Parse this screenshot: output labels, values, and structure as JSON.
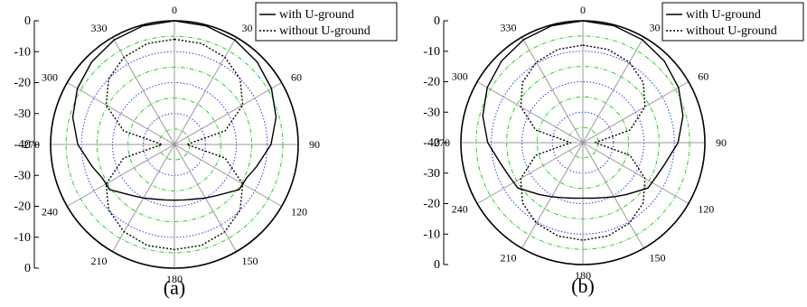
{
  "chart_data": [
    {
      "type": "polar-line",
      "panel_label": "(a)",
      "radial_axis": {
        "range": [
          -40,
          0
        ],
        "unit": "dB",
        "tick_labels": [
          "0",
          "-10",
          "-20",
          "-30",
          "-40",
          "-30",
          "-20",
          "-10",
          "0"
        ]
      },
      "angle_ticks": [
        "0",
        "30",
        "60",
        "90",
        "120",
        "150",
        "180",
        "210",
        "240",
        "270",
        "300",
        "330"
      ],
      "legend": {
        "position": "top-right",
        "entries": [
          "with U-ground",
          "without U-ground"
        ]
      },
      "grid": true,
      "series": [
        {
          "name": "with U-ground",
          "style": "solid",
          "color": "#000000",
          "theta_deg": [
            0,
            15,
            30,
            45,
            60,
            75,
            90,
            105,
            115,
            125,
            140,
            150,
            160,
            170,
            180,
            190,
            200,
            210,
            220,
            235,
            245,
            255,
            270,
            285,
            300,
            315,
            330,
            345
          ],
          "gain_db": [
            0,
            -0.3,
            -1,
            -2.2,
            -3.8,
            -6,
            -8.8,
            -12.5,
            -14.3,
            -14.5,
            -18.5,
            -20,
            -21.2,
            -21.8,
            -22,
            -21.8,
            -21.2,
            -20,
            -18.5,
            -14.5,
            -14.3,
            -12.5,
            -8.8,
            -6,
            -3.8,
            -2.2,
            -1,
            -0.3
          ]
        },
        {
          "name": "without U-ground",
          "style": "dotted",
          "color": "#000000",
          "theta_deg": [
            0,
            15,
            30,
            45,
            60,
            75,
            90,
            105,
            120,
            135,
            150,
            165,
            180,
            195,
            210,
            225,
            240,
            255,
            270,
            285,
            300,
            315,
            330,
            345
          ],
          "gain_db": [
            -6,
            -6.2,
            -7.4,
            -10,
            -14.5,
            -23,
            -36,
            -23,
            -14.5,
            -10,
            -7.4,
            -6.2,
            -6,
            -6.2,
            -7.4,
            -10,
            -14.5,
            -23,
            -36,
            -23,
            -14.5,
            -10,
            -7.4,
            -6.2
          ]
        }
      ]
    },
    {
      "type": "polar-line",
      "panel_label": "(b)",
      "radial_axis": {
        "range": [
          -40,
          0
        ],
        "unit": "dB",
        "tick_labels": [
          "0",
          "-10",
          "-20",
          "-30",
          "-40",
          "-30",
          "-20",
          "-10",
          "0"
        ]
      },
      "angle_ticks": [
        "0",
        "30",
        "60",
        "90",
        "120",
        "150",
        "180",
        "210",
        "240",
        "270",
        "300",
        "330"
      ],
      "legend": {
        "position": "top-right",
        "entries": [
          "with U-ground",
          "without U-ground"
        ]
      },
      "grid": true,
      "series": [
        {
          "name": "with U-ground",
          "style": "solid",
          "color": "#000000",
          "theta_deg": [
            0,
            15,
            30,
            45,
            60,
            75,
            90,
            105,
            115,
            125,
            140,
            150,
            160,
            170,
            180,
            190,
            200,
            210,
            220,
            235,
            245,
            255,
            270,
            285,
            300,
            315,
            330,
            345
          ],
          "gain_db": [
            0,
            -0.3,
            -1,
            -2.2,
            -3.8,
            -6,
            -8.8,
            -12.3,
            -13.5,
            -14,
            -17.8,
            -19.5,
            -20.8,
            -21.5,
            -21.8,
            -21.5,
            -20.8,
            -19.5,
            -17.8,
            -14,
            -13.5,
            -12.3,
            -8.8,
            -6,
            -3.8,
            -2.2,
            -1,
            -0.3
          ]
        },
        {
          "name": "without U-ground",
          "style": "dotted",
          "color": "#000000",
          "theta_deg": [
            0,
            15,
            30,
            45,
            60,
            75,
            90,
            105,
            120,
            135,
            150,
            165,
            180,
            195,
            210,
            225,
            240,
            255,
            270,
            285,
            300,
            315,
            330,
            345
          ],
          "gain_db": [
            -8,
            -8.3,
            -9.5,
            -12,
            -16.5,
            -24,
            -36,
            -24,
            -16.5,
            -12,
            -9.5,
            -8.3,
            -8,
            -8.3,
            -9.5,
            -12,
            -16.5,
            -24,
            -36,
            -24,
            -16.5,
            -12,
            -9.5,
            -8.3
          ]
        }
      ]
    }
  ],
  "colors": {
    "grid_green": "#33cc33",
    "grid_blue": "#3333ee",
    "spoke": "#9a9a9a",
    "frame": "#000000"
  }
}
